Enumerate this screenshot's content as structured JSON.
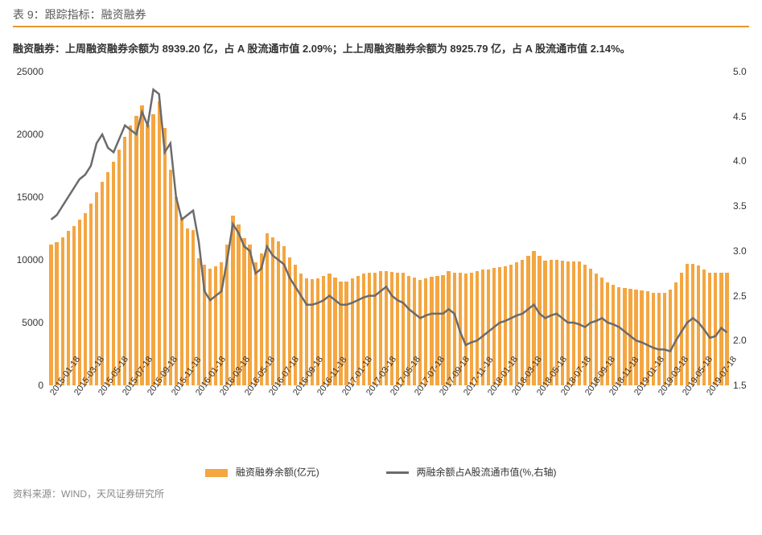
{
  "title": "表 9：跟踪指标：融资融券",
  "subtitle": "融资融券：上周融资融券余额为 8939.20 亿，占 A 股流通市值 2.09%；上上周融资融券余额为 8925.79 亿，占 A 股流通市值 2.14%。",
  "source": "资料来源：WIND，天风证券研究所",
  "chart": {
    "type": "bar+line",
    "left_axis": {
      "min": 0,
      "max": 25000,
      "ticks": [
        0,
        5000,
        10000,
        15000,
        20000,
        25000
      ]
    },
    "right_axis": {
      "min": 1.5,
      "max": 5.0,
      "ticks": [
        1.5,
        2.0,
        2.5,
        3.0,
        3.5,
        4.0,
        4.5,
        5.0
      ]
    },
    "x_labels": [
      "2015-01-18",
      "2015-03-18",
      "2015-05-18",
      "2015-07-18",
      "2015-09-18",
      "2015-11-18",
      "2016-01-18",
      "2016-03-18",
      "2016-05-18",
      "2016-07-18",
      "2016-09-18",
      "2016-11-18",
      "2017-01-18",
      "2017-03-18",
      "2017-05-18",
      "2017-07-18",
      "2017-09-18",
      "2017-11-18",
      "2018-01-18",
      "2018-03-18",
      "2018-05-18",
      "2018-07-18",
      "2018-09-18",
      "2018-11-18",
      "2019-01-18",
      "2019-03-18",
      "2019-05-18",
      "2019-07-18"
    ],
    "bar_color": "#f4a641",
    "line_color": "#6b6b6b",
    "line_width": 2.5,
    "bar_values": [
      11200,
      11400,
      11800,
      12300,
      12700,
      13200,
      13700,
      14500,
      15400,
      16200,
      17000,
      17800,
      18800,
      19800,
      20700,
      21500,
      22300,
      20800,
      21600,
      22600,
      20500,
      17200,
      15000,
      13400,
      12500,
      12400,
      10100,
      9600,
      9300,
      9500,
      9800,
      11200,
      13500,
      12800,
      11700,
      11200,
      9800,
      10500,
      12100,
      11800,
      11500,
      11100,
      10200,
      9600,
      8900,
      8500,
      8450,
      8500,
      8700,
      8900,
      8600,
      8300,
      8300,
      8500,
      8700,
      8900,
      9000,
      9000,
      9100,
      9100,
      9050,
      9000,
      8950,
      8750,
      8600,
      8400,
      8550,
      8650,
      8700,
      8800,
      9100,
      9000,
      8950,
      8900,
      9000,
      9100,
      9200,
      9250,
      9350,
      9400,
      9500,
      9600,
      9800,
      10000,
      10300,
      10700,
      10300,
      9950,
      10000,
      10000,
      9950,
      9900,
      9900,
      9850,
      9600,
      9300,
      8900,
      8600,
      8200,
      8000,
      7850,
      7750,
      7700,
      7650,
      7550,
      7500,
      7400,
      7350,
      7400,
      7600,
      8200,
      9000,
      9650,
      9700,
      9550,
      9200,
      9000,
      8950,
      8950,
      8950
    ],
    "line_values": [
      3.35,
      3.4,
      3.5,
      3.6,
      3.7,
      3.8,
      3.85,
      3.95,
      4.2,
      4.3,
      4.15,
      4.1,
      4.25,
      4.4,
      4.35,
      4.3,
      4.55,
      4.4,
      4.8,
      4.75,
      4.1,
      4.2,
      3.6,
      3.35,
      3.4,
      3.45,
      3.1,
      2.55,
      2.45,
      2.5,
      2.55,
      2.9,
      3.3,
      3.2,
      3.05,
      3.0,
      2.75,
      2.8,
      3.05,
      2.95,
      2.9,
      2.85,
      2.7,
      2.6,
      2.5,
      2.4,
      2.4,
      2.42,
      2.45,
      2.5,
      2.45,
      2.4,
      2.4,
      2.42,
      2.45,
      2.48,
      2.5,
      2.5,
      2.55,
      2.6,
      2.5,
      2.45,
      2.42,
      2.35,
      2.3,
      2.25,
      2.28,
      2.3,
      2.3,
      2.3,
      2.35,
      2.3,
      2.1,
      1.95,
      1.98,
      2.0,
      2.05,
      2.1,
      2.15,
      2.2,
      2.22,
      2.25,
      2.28,
      2.3,
      2.35,
      2.4,
      2.3,
      2.25,
      2.28,
      2.3,
      2.25,
      2.2,
      2.2,
      2.18,
      2.15,
      2.2,
      2.22,
      2.25,
      2.2,
      2.18,
      2.15,
      2.1,
      2.05,
      2.0,
      1.98,
      1.95,
      1.92,
      1.9,
      1.9,
      1.88,
      2.0,
      2.1,
      2.2,
      2.25,
      2.2,
      2.12,
      2.03,
      2.05,
      2.14,
      2.09
    ],
    "legend": {
      "bar": "融资融券余额(亿元)",
      "line": "两融余额占A股流通市值(%,右轴)"
    }
  },
  "colors": {
    "accent": "#e8972f",
    "text": "#333333",
    "muted": "#888888"
  },
  "fonts": {
    "title_size": 14,
    "subtitle_size": 13,
    "tick_size": 12
  }
}
